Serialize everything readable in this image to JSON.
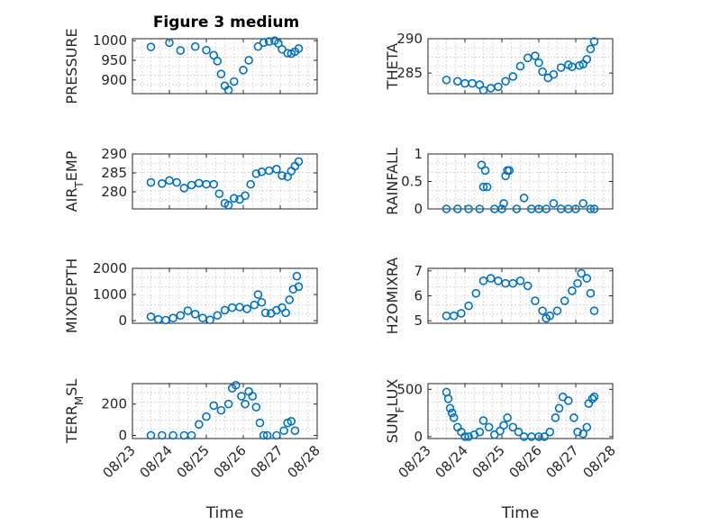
{
  "colors": {
    "marker": "#0072BD",
    "axis": "#262626",
    "grid": "#b0b0b0",
    "background": "#ffffff"
  },
  "figure": {
    "title": "Figure 3 medium",
    "x_tick_labels": [
      "08/23",
      "08/24",
      "08/25",
      "08/26",
      "08/27",
      "08/28"
    ],
    "xlabel": "Time"
  },
  "chart_data": [
    {
      "type": "scatter",
      "title": "Figure 3 medium",
      "xlabel": "",
      "ylabel": "PRESSURE",
      "xlim": [
        0,
        5
      ],
      "ylim": [
        865,
        1005
      ],
      "yticks": [
        900,
        950,
        1000
      ],
      "ytick_labels": [
        "900",
        "950",
        "1000"
      ],
      "grid": true,
      "x": [
        0.5,
        1.0,
        1.3,
        1.7,
        2.0,
        2.2,
        2.3,
        2.4,
        2.5,
        2.6,
        2.75,
        3.0,
        3.15,
        3.4,
        3.55,
        3.7,
        3.85,
        3.95,
        4.05,
        4.2,
        4.3,
        4.4,
        4.5
      ],
      "y": [
        984,
        995,
        975,
        985,
        976,
        963,
        948,
        915,
        885,
        874,
        896,
        925,
        950,
        985,
        995,
        998,
        1000,
        993,
        978,
        968,
        967,
        972,
        980
      ]
    },
    {
      "type": "scatter",
      "xlabel": "",
      "ylabel": "THETA",
      "xlim": [
        0,
        5
      ],
      "ylim": [
        282,
        290
      ],
      "yticks": [
        285,
        290
      ],
      "ytick_labels": [
        "285",
        "290"
      ],
      "grid": true,
      "x": [
        0.5,
        0.8,
        1.0,
        1.2,
        1.4,
        1.5,
        1.7,
        1.9,
        2.1,
        2.3,
        2.5,
        2.7,
        2.9,
        3.0,
        3.1,
        3.25,
        3.4,
        3.6,
        3.8,
        3.9,
        4.1,
        4.2,
        4.3,
        4.4,
        4.5
      ],
      "y": [
        284.0,
        283.8,
        283.5,
        283.5,
        283.3,
        282.5,
        282.8,
        283.0,
        283.8,
        284.5,
        286.0,
        287.2,
        287.5,
        286.5,
        285.2,
        284.3,
        284.8,
        285.8,
        286.2,
        285.9,
        286.1,
        286.3,
        287.0,
        288.5,
        289.6
      ]
    },
    {
      "type": "scatter",
      "xlabel": "",
      "ylabel": "AIR_TEMP",
      "ylabel_main": "AIR",
      "ylabel_sub": "T",
      "ylabel_rest": "EMP",
      "xlim": [
        0,
        5
      ],
      "ylim": [
        275.5,
        290
      ],
      "yticks": [
        280,
        285,
        290
      ],
      "ytick_labels": [
        "280",
        "285",
        "290"
      ],
      "grid": true,
      "x": [
        0.5,
        0.8,
        1.0,
        1.2,
        1.4,
        1.6,
        1.8,
        2.0,
        2.2,
        2.35,
        2.5,
        2.6,
        2.75,
        2.9,
        3.05,
        3.2,
        3.35,
        3.5,
        3.7,
        3.9,
        4.05,
        4.2,
        4.3,
        4.4,
        4.5
      ],
      "y": [
        282.5,
        282.2,
        283.0,
        282.5,
        281.0,
        281.8,
        282.3,
        282.0,
        282.0,
        279.5,
        277.0,
        276.5,
        278.3,
        278.0,
        279.0,
        282.0,
        284.8,
        285.3,
        285.6,
        286.0,
        284.3,
        284.0,
        285.5,
        286.8,
        288.0
      ]
    },
    {
      "type": "scatter",
      "xlabel": "",
      "ylabel": "RAINFALL",
      "xlim": [
        0,
        5
      ],
      "ylim": [
        0,
        1
      ],
      "yticks": [
        0,
        0.5,
        1
      ],
      "ytick_labels": [
        "0",
        "0.5",
        "1"
      ],
      "grid": true,
      "x": [
        0.5,
        0.8,
        1.1,
        1.4,
        1.45,
        1.5,
        1.55,
        1.6,
        1.8,
        2.0,
        2.05,
        2.1,
        2.15,
        2.2,
        2.4,
        2.6,
        2.8,
        3.0,
        3.2,
        3.4,
        3.6,
        3.8,
        4.0,
        4.2,
        4.4,
        4.5
      ],
      "y": [
        0,
        0,
        0,
        0,
        0.8,
        0.4,
        0.7,
        0.4,
        0,
        0,
        0.1,
        0.6,
        0.7,
        0.7,
        0,
        0.2,
        0,
        0,
        0,
        0.1,
        0,
        0,
        0,
        0.1,
        0,
        0
      ]
    },
    {
      "type": "scatter",
      "xlabel": "",
      "ylabel": "MIXDEPTH",
      "xlim": [
        0,
        5
      ],
      "ylim": [
        -100,
        2000
      ],
      "yticks": [
        0,
        1000,
        2000
      ],
      "ytick_labels": [
        "0",
        "1000",
        "2000"
      ],
      "grid": true,
      "x": [
        0.5,
        0.7,
        0.9,
        1.1,
        1.3,
        1.5,
        1.7,
        1.9,
        2.1,
        2.3,
        2.5,
        2.7,
        2.9,
        3.1,
        3.3,
        3.4,
        3.5,
        3.6,
        3.75,
        3.9,
        4.05,
        4.15,
        4.25,
        4.35,
        4.45,
        4.5
      ],
      "y": [
        150,
        50,
        20,
        100,
        200,
        380,
        250,
        100,
        30,
        200,
        400,
        500,
        520,
        450,
        600,
        1000,
        700,
        300,
        280,
        400,
        500,
        300,
        800,
        1200,
        1700,
        1300
      ]
    },
    {
      "type": "scatter",
      "xlabel": "",
      "ylabel": "H2OMIXRA",
      "xlim": [
        0,
        5
      ],
      "ylim": [
        4.9,
        7.1
      ],
      "yticks": [
        5,
        6,
        7
      ],
      "ytick_labels": [
        "5",
        "6",
        "7"
      ],
      "grid": true,
      "x": [
        0.5,
        0.7,
        0.9,
        1.1,
        1.3,
        1.5,
        1.7,
        1.9,
        2.1,
        2.3,
        2.5,
        2.7,
        2.9,
        3.1,
        3.2,
        3.3,
        3.5,
        3.7,
        3.9,
        4.05,
        4.15,
        4.3,
        4.4,
        4.5
      ],
      "y": [
        5.2,
        5.2,
        5.3,
        5.6,
        6.1,
        6.6,
        6.7,
        6.6,
        6.5,
        6.5,
        6.6,
        6.4,
        5.8,
        5.4,
        5.1,
        5.2,
        5.4,
        5.8,
        6.2,
        6.5,
        6.9,
        6.7,
        6.1,
        5.4
      ]
    },
    {
      "type": "scatter",
      "xlabel": "Time",
      "ylabel": "TERR_MSL",
      "ylabel_main": "TERR",
      "ylabel_sub": "M",
      "ylabel_rest": "SL",
      "xlim": [
        0,
        5
      ],
      "ylim": [
        -20,
        330
      ],
      "yticks": [
        0,
        200
      ],
      "ytick_labels": [
        "0",
        "200"
      ],
      "grid": true,
      "x": [
        0.5,
        0.8,
        1.1,
        1.4,
        1.6,
        1.8,
        2.0,
        2.2,
        2.4,
        2.6,
        2.7,
        2.8,
        2.95,
        3.05,
        3.15,
        3.25,
        3.35,
        3.45,
        3.55,
        3.65,
        3.9,
        4.1,
        4.2,
        4.3,
        4.4
      ],
      "y": [
        0,
        0,
        0,
        0,
        0,
        70,
        120,
        190,
        160,
        200,
        300,
        320,
        250,
        200,
        280,
        250,
        180,
        80,
        0,
        0,
        0,
        30,
        80,
        90,
        30
      ]
    },
    {
      "type": "scatter",
      "xlabel": "Time",
      "ylabel": "SUN_FLUX",
      "ylabel_main": "SUN",
      "ylabel_sub": "F",
      "ylabel_rest": "LUX",
      "xlim": [
        0,
        5
      ],
      "ylim": [
        -20,
        560
      ],
      "yticks": [
        0,
        500
      ],
      "ytick_labels": [
        "0",
        "500"
      ],
      "grid": true,
      "x": [
        0.5,
        0.55,
        0.6,
        0.65,
        0.7,
        0.8,
        0.9,
        1.0,
        1.1,
        1.25,
        1.4,
        1.5,
        1.65,
        1.8,
        1.95,
        2.05,
        2.15,
        2.3,
        2.45,
        2.6,
        2.8,
        3.0,
        3.15,
        3.3,
        3.45,
        3.55,
        3.65,
        3.8,
        3.95,
        4.05,
        4.2,
        4.3,
        4.35,
        4.45,
        4.5
      ],
      "y": [
        470,
        400,
        300,
        250,
        200,
        100,
        50,
        0,
        0,
        20,
        50,
        170,
        100,
        20,
        60,
        120,
        200,
        100,
        50,
        0,
        0,
        0,
        0,
        50,
        200,
        300,
        420,
        380,
        200,
        50,
        30,
        100,
        350,
        400,
        420
      ]
    }
  ]
}
